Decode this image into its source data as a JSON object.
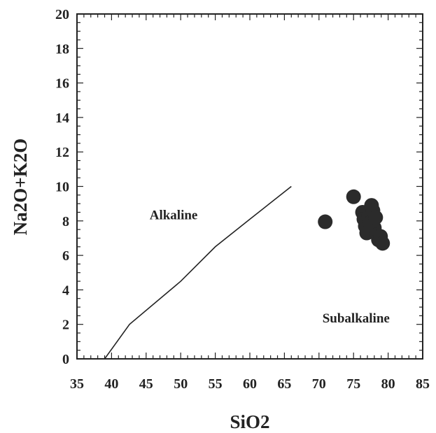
{
  "chart_data": {
    "type": "scatter",
    "xlabel": "SiO2",
    "ylabel": "Na2O+K2O",
    "xlim": [
      35,
      85
    ],
    "ylim": [
      0,
      20
    ],
    "x_ticks": [
      "35",
      "40",
      "45",
      "50",
      "55",
      "60",
      "65",
      "70",
      "75",
      "80",
      "85"
    ],
    "y_ticks": [
      "0",
      "2",
      "4",
      "6",
      "8",
      "10",
      "12",
      "14",
      "16",
      "18",
      "20"
    ],
    "grid": false,
    "annotations": [
      {
        "text": "Alkaline",
        "x": 45.5,
        "y": 8.1
      },
      {
        "text": "Subalkaline",
        "x": 70.5,
        "y": 2.1
      }
    ],
    "boundary_line": {
      "x": [
        39,
        42.6,
        50,
        55,
        60,
        66
      ],
      "y": [
        0,
        2,
        4.5,
        6.5,
        8.1,
        10
      ]
    },
    "points": [
      {
        "x": 70.9,
        "y": 7.95
      },
      {
        "x": 75.0,
        "y": 9.4
      },
      {
        "x": 76.3,
        "y": 8.5
      },
      {
        "x": 76.5,
        "y": 8.1
      },
      {
        "x": 76.7,
        "y": 7.7
      },
      {
        "x": 76.9,
        "y": 7.3
      },
      {
        "x": 77.2,
        "y": 8.3
      },
      {
        "x": 77.4,
        "y": 7.9
      },
      {
        "x": 77.6,
        "y": 8.9
      },
      {
        "x": 77.8,
        "y": 8.6
      },
      {
        "x": 78.0,
        "y": 7.6
      },
      {
        "x": 78.2,
        "y": 8.2
      },
      {
        "x": 78.4,
        "y": 7.2
      },
      {
        "x": 78.6,
        "y": 6.9
      },
      {
        "x": 78.9,
        "y": 7.1
      },
      {
        "x": 79.2,
        "y": 6.7
      }
    ]
  },
  "style": {
    "marker_color": "#2b2b2b",
    "line_color": "#222222",
    "frame_color": "#222222"
  }
}
